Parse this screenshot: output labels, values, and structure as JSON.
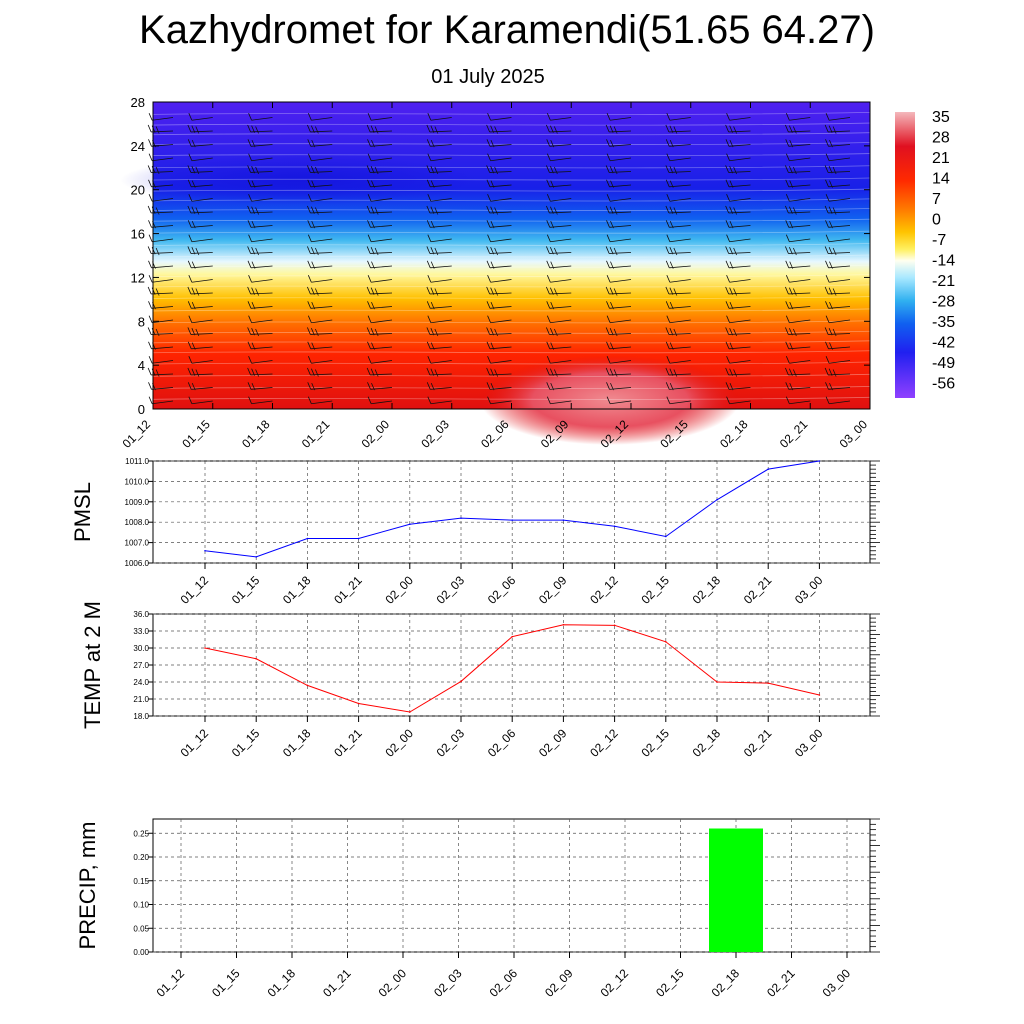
{
  "title": "Kazhydromet for Karamendi(51.65 64.27)",
  "subtitle": "01 July 2025",
  "time_labels": [
    "01_12",
    "01_15",
    "01_18",
    "01_21",
    "02_00",
    "02_03",
    "02_06",
    "02_09",
    "02_12",
    "02_15",
    "02_18",
    "02_21",
    "03_00"
  ],
  "chart_data": [
    {
      "type": "heatmap",
      "name": "temperature-cross-section",
      "x": [
        "01_12",
        "01_15",
        "01_18",
        "01_21",
        "02_00",
        "02_03",
        "02_06",
        "02_09",
        "02_12",
        "02_15",
        "02_18",
        "02_21",
        "03_00"
      ],
      "y_ticks": [
        0,
        4,
        8,
        12,
        16,
        20,
        24,
        28
      ],
      "ylim": [
        0,
        28
      ],
      "colorbar": {
        "labels": [
          "35",
          "28",
          "21",
          "14",
          "7",
          "0",
          "-7",
          "-14",
          "-21",
          "-28",
          "-35",
          "-42",
          "-49",
          "-56"
        ],
        "colors": [
          "#f3a8b0",
          "#e01020",
          "#ff2a00",
          "#ff7a00",
          "#ffc400",
          "#fff060",
          "#fffff0",
          "#a8e8ff",
          "#30b0f0",
          "#1060f0",
          "#2020f0",
          "#5020f0",
          "#7a30f8",
          "#9040ff"
        ]
      },
      "grid": false,
      "wind_barbs": true
    },
    {
      "type": "line",
      "name": "pmsl",
      "ylabel": "PMSL",
      "x": [
        "01_12",
        "01_15",
        "01_18",
        "01_21",
        "02_00",
        "02_03",
        "02_06",
        "02_09",
        "02_12",
        "02_15",
        "02_18",
        "02_21",
        "03_00"
      ],
      "series": [
        {
          "values": [
            1006.6,
            1006.3,
            1007.2,
            1007.2,
            1007.9,
            1008.2,
            1008.1,
            1008.1,
            1007.8,
            1007.3,
            1009.1,
            1010.6,
            1011.0
          ],
          "color": "#0000ff"
        }
      ],
      "y_ticks": [
        "1006.0",
        "1007.0",
        "1008.0",
        "1009.0",
        "1010.0",
        "1011.0"
      ],
      "ylim": [
        1006,
        1011
      ],
      "grid": true
    },
    {
      "type": "line",
      "name": "temp-2m",
      "ylabel": "TEMP at 2 M",
      "x": [
        "01_12",
        "01_15",
        "01_18",
        "01_21",
        "02_00",
        "02_03",
        "02_06",
        "02_09",
        "02_12",
        "02_15",
        "02_18",
        "02_21",
        "03_00"
      ],
      "series": [
        {
          "values": [
            30.0,
            28.1,
            23.4,
            20.2,
            18.7,
            24.1,
            32.0,
            34.1,
            34.0,
            31.1,
            24.0,
            23.8,
            21.7
          ],
          "color": "#ff0000"
        }
      ],
      "y_ticks": [
        "18.0",
        "21.0",
        "24.0",
        "27.0",
        "30.0",
        "33.0",
        "36.0"
      ],
      "ylim": [
        18,
        36
      ],
      "grid": true
    },
    {
      "type": "bar",
      "name": "precip",
      "ylabel": "PRECIP, mm",
      "x": [
        "01_12",
        "01_15",
        "01_18",
        "01_21",
        "02_00",
        "02_03",
        "02_06",
        "02_09",
        "02_12",
        "02_15",
        "02_18",
        "02_21",
        "03_00"
      ],
      "series": [
        {
          "values": [
            0,
            0,
            0,
            0,
            0,
            0,
            0,
            0,
            0,
            0,
            0.26,
            0,
            0
          ],
          "color": "#00ff00"
        }
      ],
      "y_ticks": [
        "0.00",
        "0.05",
        "0.10",
        "0.15",
        "0.20",
        "0.25"
      ],
      "ylim": [
        0,
        0.28
      ],
      "grid": true
    }
  ]
}
